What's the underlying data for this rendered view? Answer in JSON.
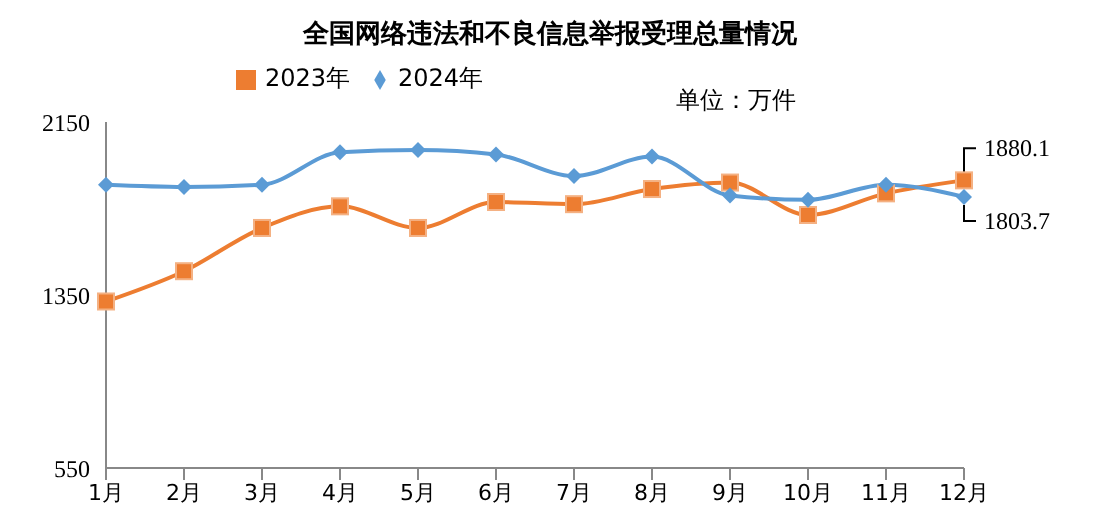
{
  "chart_data": {
    "type": "line",
    "title": "全国网络违法和不良信息举报受理总量情况",
    "categories": [
      "1月",
      "2月",
      "3月",
      "4月",
      "5月",
      "6月",
      "7月",
      "8月",
      "9月",
      "10月",
      "11月",
      "12月"
    ],
    "series": [
      {
        "name": "2023年",
        "color": "#ed7d31",
        "marker": "square",
        "values": [
          1320,
          1460,
          1660,
          1760,
          1660,
          1780,
          1770,
          1840,
          1870,
          1720,
          1820,
          1880.1
        ]
      },
      {
        "name": "2024年",
        "color": "#5b9bd5",
        "marker": "diamond",
        "values": [
          1860,
          1850,
          1860,
          2010,
          2020,
          2000,
          1900,
          1990,
          1810,
          1790,
          1860,
          1803.7
        ]
      }
    ],
    "ylim": [
      550,
      2150
    ],
    "yticks": [
      550,
      1350,
      2150
    ],
    "grid": false,
    "legend": "top",
    "annotations": [
      "单位：万件",
      {
        "text": "1880.1",
        "x": "12月",
        "y": 1880.1
      },
      {
        "text": "1803.7",
        "x": "12月",
        "y": 1803.7
      }
    ]
  }
}
